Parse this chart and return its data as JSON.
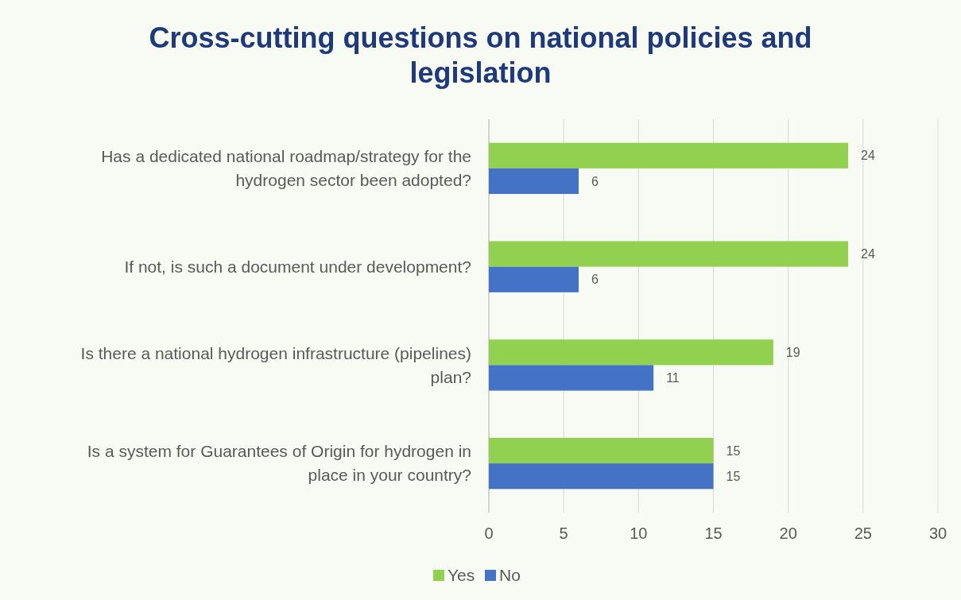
{
  "chart_data": {
    "type": "bar",
    "orientation": "horizontal",
    "title": "Cross-cutting questions on national policies and legislation",
    "categories": [
      "Has a dedicated national roadmap/strategy for the hydrogen sector been adopted?",
      "If not, is such a document under development?",
      "Is there a national hydrogen infrastructure (pipelines) plan?",
      "Is a system for Guarantees of Origin for hydrogen in place in your country?"
    ],
    "series": [
      {
        "name": "Yes",
        "color": "#92d050",
        "values": [
          24,
          24,
          19,
          15
        ]
      },
      {
        "name": "No",
        "color": "#4472c4",
        "values": [
          6,
          6,
          11,
          15
        ]
      }
    ],
    "xlim": [
      0,
      30
    ],
    "xticks": [
      0,
      5,
      10,
      15,
      20,
      25,
      30
    ],
    "grid": "x",
    "legend": "bottom",
    "data_labels": true
  }
}
